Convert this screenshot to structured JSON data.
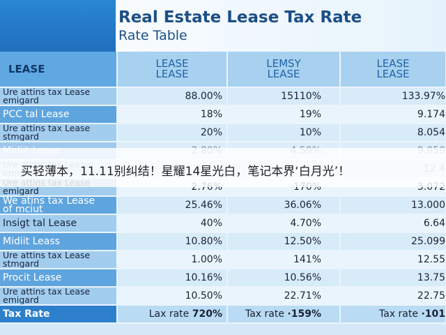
{
  "title": "Real Estate Lease Tax Rate",
  "subtitle": "Rate Table",
  "banner": "买轻薄本，11.11别纠结！星耀14星光白，笔记本界‘白月光’！",
  "header": {
    "first": "LEASE",
    "col1": [
      "LEASE",
      "LEASE"
    ],
    "col2": [
      "LEMSY",
      "LEASE"
    ],
    "col3": [
      "LEASE",
      "LEASE"
    ]
  },
  "rows": [
    {
      "label": "Ure attins tax Lease\nemigard",
      "style": "light small",
      "v1": "88.00%",
      "v2": "15110%",
      "v3": "133.97%"
    },
    {
      "label": "PCC tal Lease",
      "style": "dark big",
      "v1": "18%",
      "v2": "19%",
      "v3": "9.174"
    },
    {
      "label": "Ure attins tax Lease\nstmgard",
      "style": "light small",
      "v1": "20%",
      "v2": "10%",
      "v3": "8.054"
    },
    {
      "label": "Midiit Lease",
      "style": "dark big faded",
      "v1": "2.80%",
      "v2": "4.50%",
      "v3": "9.050"
    },
    {
      "label": "Ure attins tax Lease\nemigard",
      "style": "light small faded",
      "v1": "",
      "v2": "",
      "v3": "12.4"
    },
    {
      "label": "Ure attins tax Lease\nemigard",
      "style": "light small",
      "v1": "2.76%",
      "v2": "170%",
      "v3": "3.072"
    },
    {
      "label": "We atins tax Lease\nof mciut",
      "style": "dark big",
      "v1": "25.46%",
      "v2": "36.06%",
      "v3": "13.000"
    },
    {
      "label": "Insigt tal Lease",
      "style": "light big",
      "v1": "40%",
      "v2": "4.70%",
      "v3": "6.64"
    },
    {
      "label": "Midiit Leass",
      "style": "dark big",
      "v1": "10.80%",
      "v2": "12.50%",
      "v3": "25.099"
    },
    {
      "label": "Ure attins tax Lease\nstmgard",
      "style": "light small",
      "v1": "1.00%",
      "v2": "141%",
      "v3": "12.55"
    },
    {
      "label": "Procit Lease",
      "style": "dark big",
      "v1": "10.16%",
      "v2": "10.56%",
      "v3": "13.75"
    },
    {
      "label": "Ure attins tax Lease\nemigard",
      "style": "light small",
      "v1": "10.50%",
      "v2": "22.71%",
      "v3": "22.75"
    }
  ],
  "tax_row": {
    "label": "Tax Rate",
    "prefix1": "Lax rate",
    "v1": "720%",
    "prefix2": "Tax rate",
    "v2": "·159%",
    "prefix3": "Tax rate",
    "v3": "·101"
  }
}
